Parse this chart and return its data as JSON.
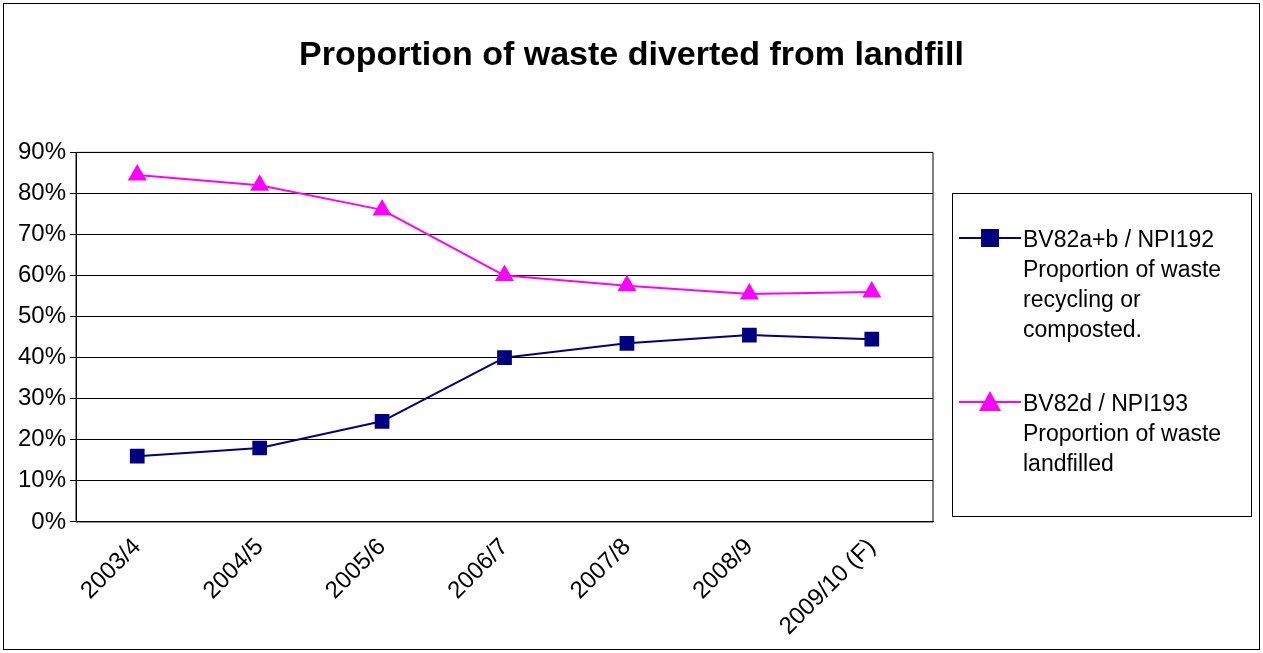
{
  "chart_data": {
    "type": "line",
    "title": "Proportion of waste diverted from landfill",
    "categories": [
      "2003/4",
      "2004/5",
      "2005/6",
      "2006/7",
      "2007/8",
      "2008/9",
      "2009/10 (F)"
    ],
    "series": [
      {
        "name": "BV82a+b / NPI192 Proportion of waste recycling or composted.",
        "color": "#000080",
        "marker": "square",
        "values": [
          16,
          18,
          24.5,
          40,
          43.5,
          45.5,
          44.5
        ]
      },
      {
        "name": "BV82d / NPI193 Proportion of waste landfilled",
        "color": "#ff00ff",
        "marker": "triangle",
        "values": [
          84.5,
          82,
          76,
          60,
          57.5,
          55.5,
          56
        ]
      }
    ],
    "ylim": [
      0,
      90
    ],
    "yticks": [
      {
        "value": 0,
        "label": "0%"
      },
      {
        "value": 10,
        "label": "10%"
      },
      {
        "value": 20,
        "label": "20%"
      },
      {
        "value": 30,
        "label": "30%"
      },
      {
        "value": 40,
        "label": "40%"
      },
      {
        "value": 50,
        "label": "50%"
      },
      {
        "value": 60,
        "label": "60%"
      },
      {
        "value": 70,
        "label": "70%"
      },
      {
        "value": 80,
        "label": "80%"
      },
      {
        "value": 90,
        "label": "90%"
      }
    ],
    "grid": "y",
    "legend": "right",
    "line_style": "solid"
  }
}
